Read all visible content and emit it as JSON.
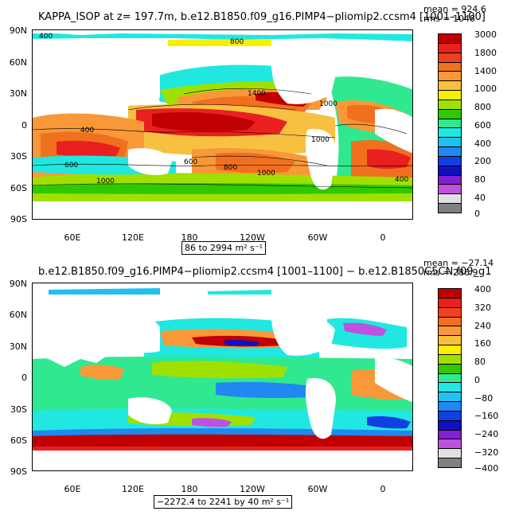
{
  "top": {
    "title": "KAPPA_ISOP at z= 197.7m, b.e12.B1850.f09_g16.PIMP4−pliomip2.ccsm4 [1001–1100]",
    "mean": "mean = 924.6",
    "rms": "rms = 1048",
    "range": "86 to 2994 m² s⁻¹",
    "lat_labels": [
      "90N",
      "60N",
      "30N",
      "0",
      "30S",
      "60S",
      "90S"
    ],
    "lon_labels": [
      "60E",
      "120E",
      "180",
      "120W",
      "60W",
      "0"
    ],
    "contour_labels": [
      "400",
      "600",
      "800",
      "400",
      "1400",
      "1000",
      "400",
      "600",
      "600",
      "800",
      "1000",
      "1000",
      "1000",
      "400"
    ],
    "colorbar": {
      "labels": [
        "3000",
        "1800",
        "1400",
        "1000",
        "800",
        "600",
        "400",
        "200",
        "80",
        "40",
        "0"
      ],
      "colors": [
        "#c00000",
        "#e82020",
        "#f04020",
        "#f07020",
        "#f89838",
        "#f8c040",
        "#f8f000",
        "#a0e000",
        "#30c800",
        "#30e890",
        "#20e8e0",
        "#20c0f0",
        "#2088f0",
        "#1040e0",
        "#1010c0",
        "#8020d0",
        "#c050e0",
        "#e0e0e0",
        "#808080"
      ]
    }
  },
  "bottom": {
    "title": "b.e12.B1850.f09_g16.PIMP4−pliomip2.ccsm4 [1001–1100] − b.e12.B1850C5CN.f09_g1",
    "mean": "mean = −27.14",
    "rms": "rms = 286.9",
    "range": "−2272.4 to 2241 by 40 m² s⁻¹",
    "lat_labels": [
      "90N",
      "60N",
      "30N",
      "0",
      "30S",
      "60S",
      "90S"
    ],
    "lon_labels": [
      "60E",
      "120E",
      "180",
      "120W",
      "60W",
      "0"
    ],
    "colorbar": {
      "labels": [
        "400",
        "320",
        "240",
        "160",
        "80",
        "0",
        "−80",
        "−160",
        "−240",
        "−320",
        "−400"
      ],
      "colors": [
        "#c00000",
        "#e82020",
        "#f04020",
        "#f07020",
        "#f89838",
        "#f8c040",
        "#f8f000",
        "#a0e000",
        "#30c800",
        "#30e890",
        "#20e8e0",
        "#20c0f0",
        "#2088f0",
        "#1040e0",
        "#1010c0",
        "#8020d0",
        "#c050e0",
        "#e0e0e0",
        "#808080"
      ]
    }
  }
}
